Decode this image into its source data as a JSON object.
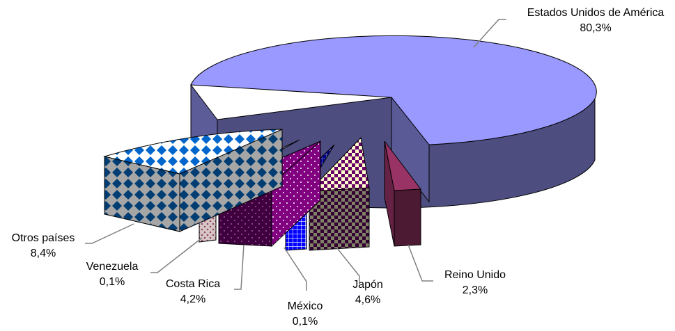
{
  "chart_data": {
    "type": "pie",
    "style": "3d-exploded",
    "legend": "none",
    "slices": [
      {
        "label": "Estados Unidos de América",
        "pct": "80,3%",
        "value": 80.3,
        "color": "#9999ff",
        "side": "#4d4d80",
        "pattern": "solid"
      },
      {
        "label": "Reino Unido",
        "pct": "2,3%",
        "value": 2.3,
        "color": "#993366",
        "side": "#4d1a33",
        "pattern": "solid"
      },
      {
        "label": "Japón",
        "pct": "4,6%",
        "value": 4.6,
        "color": "#ffffcc",
        "side": "#808066",
        "accent": "#660066",
        "pattern": "checker"
      },
      {
        "label": "México",
        "pct": "0,1%",
        "value": 0.1,
        "color": "#0000ff",
        "side": "#00008a",
        "accent": "#ffffff",
        "pattern": "grid"
      },
      {
        "label": "Costa Rica",
        "pct": "4,2%",
        "value": 4.2,
        "color": "#800080",
        "side": "#400040",
        "accent": "#ffffff",
        "pattern": "dots"
      },
      {
        "label": "Venezuela",
        "pct": "0,1%",
        "value": 0.1,
        "color": "#ffffff",
        "side": "#c9b6b6",
        "accent": "#993366",
        "pattern": "dots"
      },
      {
        "label": "Otros países",
        "pct": "8,4%",
        "value": 8.4,
        "color": "#ffffff",
        "side": "#a6a6a6",
        "accent": "#0066cc",
        "pattern": "diamonds"
      }
    ]
  }
}
